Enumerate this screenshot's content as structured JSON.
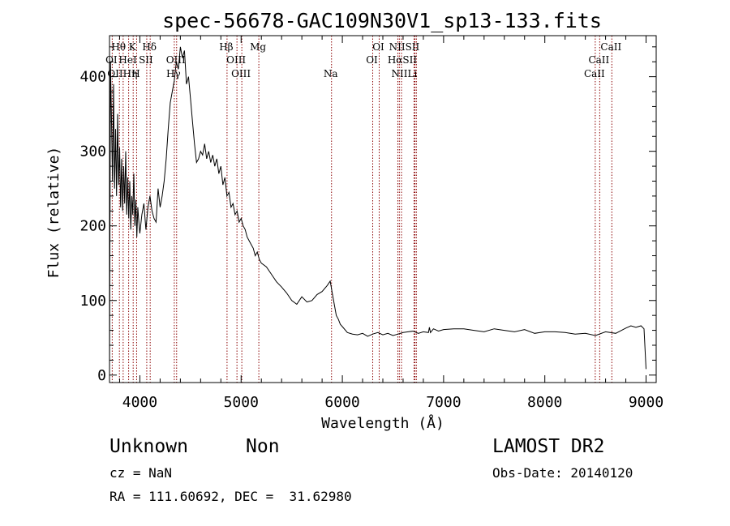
{
  "colors": {
    "foreground": "#000000",
    "background": "#ffffff",
    "line_marker": "#8b0000"
  },
  "footer": {
    "object_class": "Unknown",
    "subclass": "Non",
    "survey": "LAMOST DR2",
    "redshift": "cz = NaN",
    "obs_date": "Obs-Date: 20140120",
    "coordinates": "RA = 111.60692, DEC =  31.62980"
  },
  "chart_data": {
    "type": "line",
    "title": "spec-56678-GAC109N30V1_sp13-133.fits",
    "xlabel": "Wavelength (Å)",
    "ylabel": "Flux (relative)",
    "xlim": [
      3700,
      9100
    ],
    "ylim": [
      -10,
      455
    ],
    "xticks": [
      4000,
      5000,
      6000,
      7000,
      8000,
      9000
    ],
    "yticks": [
      0,
      100,
      200,
      300,
      400
    ],
    "grid": false,
    "series": [
      {
        "x": [
          3700,
          3710,
          3720,
          3730,
          3740,
          3750,
          3760,
          3770,
          3780,
          3790,
          3800,
          3810,
          3820,
          3830,
          3840,
          3850,
          3860,
          3870,
          3880,
          3890,
          3900,
          3910,
          3920,
          3930,
          3940,
          3950,
          3960,
          3970,
          3980,
          3990,
          4000,
          4020,
          4040,
          4060,
          4080,
          4100,
          4120,
          4140,
          4160,
          4180,
          4200,
          4220,
          4240,
          4260,
          4280,
          4300,
          4320,
          4340,
          4360,
          4380,
          4400,
          4420,
          4440,
          4460,
          4480,
          4500,
          4520,
          4540,
          4560,
          4580,
          4600,
          4620,
          4640,
          4660,
          4680,
          4700,
          4720,
          4740,
          4760,
          4780,
          4800,
          4820,
          4840,
          4860,
          4880,
          4900,
          4920,
          4940,
          4960,
          4980,
          5000,
          5020,
          5040,
          5060,
          5080,
          5100,
          5120,
          5140,
          5160,
          5180,
          5200,
          5250,
          5300,
          5350,
          5400,
          5450,
          5500,
          5550,
          5600,
          5650,
          5700,
          5750,
          5800,
          5850,
          5880,
          5900,
          5920,
          5940,
          5960,
          5980,
          6000,
          6050,
          6100,
          6150,
          6200,
          6250,
          6300,
          6350,
          6400,
          6450,
          6500,
          6550,
          6600,
          6650,
          6700,
          6750,
          6800,
          6850,
          6860,
          6870,
          6900,
          6950,
          7000,
          7100,
          7200,
          7300,
          7400,
          7500,
          7600,
          7700,
          7800,
          7900,
          8000,
          8100,
          8200,
          8300,
          8400,
          8500,
          8600,
          8700,
          8800,
          8850,
          8900,
          8950,
          8980,
          9000
        ],
        "y": [
          0,
          420,
          340,
          260,
          390,
          250,
          330,
          240,
          350,
          255,
          305,
          225,
          290,
          220,
          280,
          230,
          300,
          215,
          265,
          210,
          260,
          195,
          240,
          215,
          270,
          200,
          235,
          185,
          225,
          205,
          190,
          215,
          230,
          195,
          225,
          240,
          220,
          210,
          205,
          250,
          225,
          240,
          260,
          290,
          330,
          365,
          380,
          395,
          420,
          410,
          440,
          425,
          435,
          390,
          400,
          370,
          340,
          310,
          285,
          290,
          300,
          295,
          310,
          290,
          300,
          285,
          295,
          280,
          290,
          270,
          280,
          255,
          265,
          240,
          245,
          225,
          230,
          215,
          220,
          205,
          210,
          200,
          195,
          185,
          180,
          175,
          170,
          160,
          165,
          155,
          150,
          145,
          135,
          125,
          118,
          110,
          100,
          95,
          105,
          98,
          100,
          108,
          112,
          120,
          126,
          110,
          95,
          80,
          75,
          68,
          65,
          57,
          55,
          54,
          56,
          52,
          55,
          57,
          54,
          56,
          53,
          55,
          57,
          58,
          59,
          56,
          58,
          57,
          64,
          57,
          62,
          59,
          61,
          62,
          62,
          60,
          58,
          62,
          60,
          58,
          61,
          56,
          58,
          58,
          57,
          55,
          56,
          53,
          58,
          56,
          63,
          66,
          64,
          66,
          62,
          8
        ]
      }
    ],
    "line_markers": {
      "row1": [
        {
          "label": "Hθ",
          "x": 3798
        },
        {
          "label": "K",
          "x": 3934
        },
        {
          "label": "Hδ",
          "x": 4102
        },
        {
          "label": "Hβ",
          "x": 4861
        },
        {
          "label": "Mg",
          "x": 5175
        },
        {
          "label": "OI",
          "x": 6364
        },
        {
          "label": "NIISII",
          "x": 6620
        },
        {
          "label": "CaII",
          "x": 8662
        }
      ],
      "row2": [
        {
          "label": "OI",
          "x": 3727
        },
        {
          "label": "HeI",
          "x": 3889
        },
        {
          "label": "SII",
          "x": 4068
        },
        {
          "label": "OIII",
          "x": 4363
        },
        {
          "label": "OIII",
          "x": 4959
        },
        {
          "label": "OI",
          "x": 6300
        },
        {
          "label": "HαSII",
          "x": 6600
        },
        {
          "label": "CaII",
          "x": 8542
        }
      ],
      "row3": [
        {
          "label": "OIIHη",
          "x": 3835
        },
        {
          "label": "H",
          "x": 3968
        },
        {
          "label": "Hγ",
          "x": 4340
        },
        {
          "label": "OIII",
          "x": 5007
        },
        {
          "label": "Na",
          "x": 5893
        },
        {
          "label": "NIILi",
          "x": 6620
        },
        {
          "label": "CaII",
          "x": 8498
        }
      ],
      "lines": [
        3727,
        3798,
        3835,
        3889,
        3934,
        3968,
        4068,
        4102,
        4340,
        4363,
        4861,
        4959,
        5007,
        5175,
        5893,
        6300,
        6364,
        6548,
        6563,
        6584,
        6708,
        6717,
        6731,
        8498,
        8542,
        8662
      ]
    }
  }
}
